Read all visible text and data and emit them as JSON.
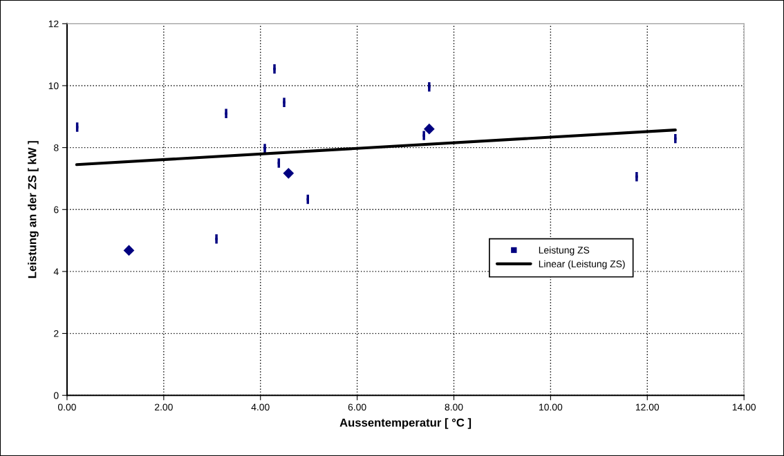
{
  "chart_data": {
    "type": "scatter",
    "xlabel": "Aussentemperatur [ °C ]",
    "ylabel": "Leistung an der ZS [ kW ]",
    "series": [
      {
        "name": "Leistung ZS",
        "marker": "square",
        "color": "#000080",
        "x": [
          0.21,
          3.29,
          4.29,
          4.49,
          4.09,
          4.38,
          4.98,
          3.09,
          7.49,
          7.38,
          12.58,
          11.78
        ],
        "values": [
          8.66,
          9.1,
          10.54,
          9.46,
          7.97,
          7.5,
          6.33,
          5.05,
          9.96,
          8.39,
          8.29,
          7.06
        ],
        "errors": [
          0.15,
          0.15,
          0.15,
          0.15,
          0.15,
          0.15,
          0.15,
          0.15,
          0.15,
          0.15,
          0.15,
          0.15
        ]
      },
      {
        "marker": "diamond",
        "color": "#000080",
        "x": [
          1.28,
          4.58,
          7.49
        ],
        "values": [
          4.68,
          7.17,
          8.6
        ]
      },
      {
        "name": "Linear (Leistung ZS)",
        "type": "line",
        "marker": "none",
        "line_style": "solid",
        "color": "#000000",
        "x": [
          0.2,
          12.58
        ],
        "values": [
          7.45,
          8.57
        ]
      }
    ],
    "xlim": [
      0,
      14
    ],
    "ylim": [
      0,
      12
    ],
    "xticks": [
      {
        "value": 0,
        "label": "0.00"
      },
      {
        "value": 2,
        "label": "2.00"
      },
      {
        "value": 4,
        "label": "4.00"
      },
      {
        "value": 6,
        "label": "6.00"
      },
      {
        "value": 8,
        "label": "8.00"
      },
      {
        "value": 10,
        "label": "10.00"
      },
      {
        "value": 12,
        "label": "12.00"
      },
      {
        "value": 14,
        "label": "14.00"
      }
    ],
    "yticks": [
      0,
      2,
      4,
      6,
      8,
      10,
      12
    ],
    "grid": true,
    "legend": "right"
  }
}
